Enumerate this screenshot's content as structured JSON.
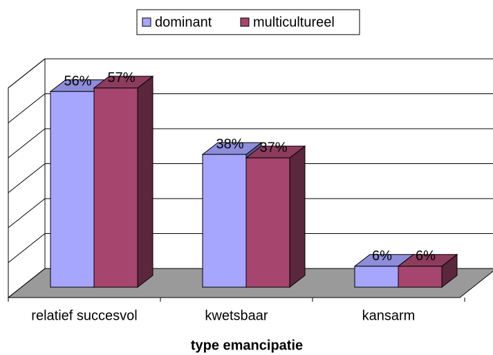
{
  "chart_data": {
    "type": "bar3d",
    "x_label": "type emancipatie",
    "categories": [
      "relatief succesvol",
      "kwetsbaar",
      "kansarm"
    ],
    "series": [
      {
        "name": "dominant",
        "color": "#a6a6ff",
        "values": [
          56,
          38,
          6
        ],
        "value_labels": [
          "56%",
          "38%",
          "6%"
        ]
      },
      {
        "name": "multicultureel",
        "color": "#a6466f",
        "values": [
          57,
          37,
          6
        ],
        "value_labels": [
          "57%",
          "37%",
          "6%"
        ]
      }
    ],
    "ylim": [
      0,
      60
    ],
    "yticks": [
      0,
      10,
      20,
      30,
      40,
      50,
      60
    ],
    "grid": true,
    "legend": "top"
  }
}
